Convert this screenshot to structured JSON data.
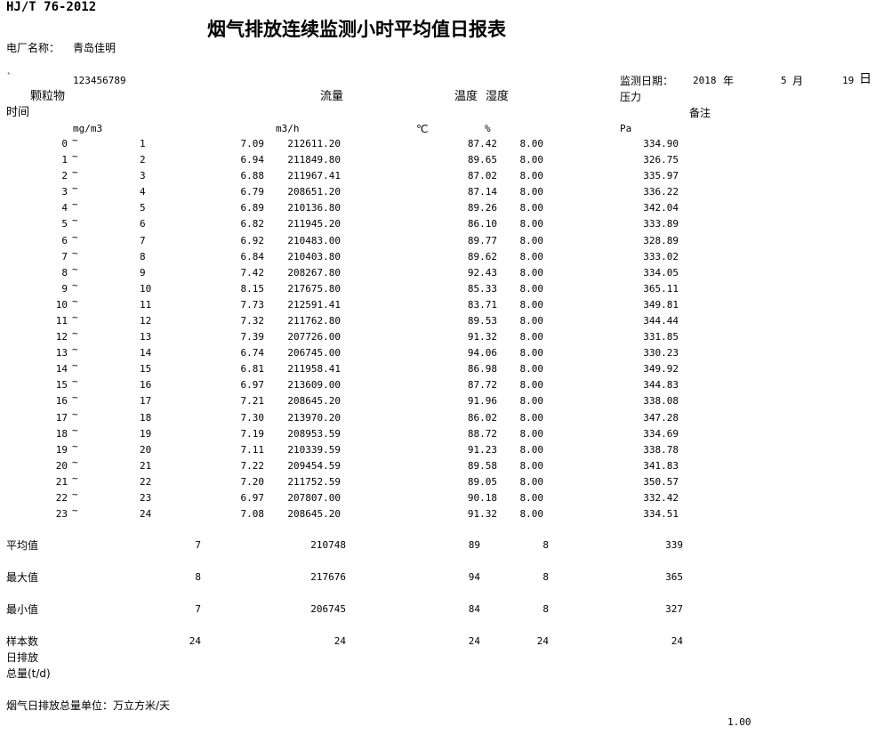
{
  "header": {
    "standard": "HJ/T 76-2012",
    "title": "烟气排放连续监测小时平均值日报表",
    "plant_label": "电厂名称：",
    "plant_name": "青岛佳明",
    "mark": "`",
    "code": "123456789",
    "date_label": "监测日期：",
    "year": "2018",
    "year_unit": "年",
    "month": "5",
    "month_unit": "月",
    "day": "19",
    "day_unit": "日"
  },
  "columns": {
    "particulate": "颗粒物",
    "flow": "流量",
    "temperature": "温度",
    "humidity": "湿度",
    "pressure": "压力",
    "time": "时间",
    "remark": "备注"
  },
  "units": {
    "particulate": "mg/m3",
    "flow": "m3/h",
    "temperature": "℃",
    "humidity": "%",
    "pressure": "Pa"
  },
  "table": {
    "separator": "~",
    "rows": [
      [
        0,
        1,
        "7.09",
        "212611.20",
        "87.42",
        "8.00",
        "334.90"
      ],
      [
        1,
        2,
        "6.94",
        "211849.80",
        "89.65",
        "8.00",
        "326.75"
      ],
      [
        2,
        3,
        "6.88",
        "211967.41",
        "87.02",
        "8.00",
        "335.97"
      ],
      [
        3,
        4,
        "6.79",
        "208651.20",
        "87.14",
        "8.00",
        "336.22"
      ],
      [
        4,
        5,
        "6.89",
        "210136.80",
        "89.26",
        "8.00",
        "342.04"
      ],
      [
        5,
        6,
        "6.82",
        "211945.20",
        "86.10",
        "8.00",
        "333.89"
      ],
      [
        6,
        7,
        "6.92",
        "210483.00",
        "89.77",
        "8.00",
        "328.89"
      ],
      [
        7,
        8,
        "6.84",
        "210403.80",
        "89.62",
        "8.00",
        "333.02"
      ],
      [
        8,
        9,
        "7.42",
        "208267.80",
        "92.43",
        "8.00",
        "334.05"
      ],
      [
        9,
        10,
        "8.15",
        "217675.80",
        "85.33",
        "8.00",
        "365.11"
      ],
      [
        10,
        11,
        "7.73",
        "212591.41",
        "83.71",
        "8.00",
        "349.81"
      ],
      [
        11,
        12,
        "7.32",
        "211762.80",
        "89.53",
        "8.00",
        "344.44"
      ],
      [
        12,
        13,
        "7.39",
        "207726.00",
        "91.32",
        "8.00",
        "331.85"
      ],
      [
        13,
        14,
        "6.74",
        "206745.00",
        "94.06",
        "8.00",
        "330.23"
      ],
      [
        14,
        15,
        "6.81",
        "211958.41",
        "86.98",
        "8.00",
        "349.92"
      ],
      [
        15,
        16,
        "6.97",
        "213609.00",
        "87.72",
        "8.00",
        "344.83"
      ],
      [
        16,
        17,
        "7.21",
        "208645.20",
        "91.96",
        "8.00",
        "338.08"
      ],
      [
        17,
        18,
        "7.30",
        "213970.20",
        "86.02",
        "8.00",
        "347.28"
      ],
      [
        18,
        19,
        "7.19",
        "208953.59",
        "88.72",
        "8.00",
        "334.69"
      ],
      [
        19,
        20,
        "7.11",
        "210339.59",
        "91.23",
        "8.00",
        "338.78"
      ],
      [
        20,
        21,
        "7.22",
        "209454.59",
        "89.58",
        "8.00",
        "341.83"
      ],
      [
        21,
        22,
        "7.20",
        "211752.59",
        "89.05",
        "8.00",
        "350.57"
      ],
      [
        22,
        23,
        "6.97",
        "207807.00",
        "90.18",
        "8.00",
        "332.42"
      ],
      [
        23,
        24,
        "7.08",
        "208645.20",
        "91.32",
        "8.00",
        "334.51"
      ]
    ]
  },
  "summary": [
    {
      "label": "平均值",
      "values": [
        7,
        210748,
        89,
        8,
        339
      ]
    },
    {
      "label": "最大值",
      "values": [
        8,
        217676,
        94,
        8,
        365
      ]
    },
    {
      "label": "最小值",
      "values": [
        7,
        206745,
        84,
        8,
        327
      ]
    },
    {
      "label": "样本数",
      "values": [
        24,
        24,
        24,
        24,
        24
      ]
    }
  ],
  "footer": {
    "daily_label_1": "日排放",
    "daily_label_2": "总量(t/d)",
    "unit_note": "烟气日排放总量单位：万立方米/天",
    "value": "1.00"
  }
}
